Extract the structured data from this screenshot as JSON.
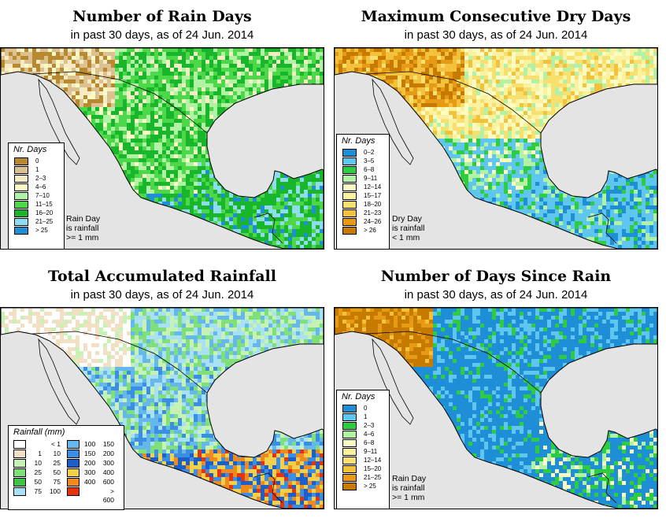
{
  "panels": [
    {
      "title": "Number of Rain Days",
      "subtitle_prefix": "in past 30 days, as of",
      "date": "24 Jun. 2014",
      "legend_title": "Nr. Days",
      "legend": [
        {
          "label": "0",
          "color": "#b8892e"
        },
        {
          "label": "1",
          "color": "#dcc191"
        },
        {
          "label": "2–3",
          "color": "#f5ecc6"
        },
        {
          "label": "4–6",
          "color": "#fbfbc4"
        },
        {
          "label": "7–10",
          "color": "#b2f2a4"
        },
        {
          "label": "11–15",
          "color": "#4dd84a"
        },
        {
          "label": "16–20",
          "color": "#18b62a"
        },
        {
          "label": "21–25",
          "color": "#8fdcef"
        },
        {
          "label": "> 25",
          "color": "#1e8fd6"
        }
      ],
      "note": [
        "Rain Day",
        "is rainfall",
        ">= 1 mm"
      ]
    },
    {
      "title": "Maximum Consecutive Dry Days",
      "subtitle_prefix": "in past 30 days, as of",
      "date": "24 Jun. 2014",
      "legend_title": "Nr. Days",
      "legend": [
        {
          "label": "0–2",
          "color": "#1e8fd6"
        },
        {
          "label": "3–5",
          "color": "#5fc6f0"
        },
        {
          "label": "6–8",
          "color": "#2ecc40"
        },
        {
          "label": "9–11",
          "color": "#b2f2a4"
        },
        {
          "label": "12–14",
          "color": "#fbfbc4"
        },
        {
          "label": "15–17",
          "color": "#fbf2a0"
        },
        {
          "label": "18–20",
          "color": "#f8e070"
        },
        {
          "label": "21–23",
          "color": "#f3c23c"
        },
        {
          "label": "24–26",
          "color": "#e79b14"
        },
        {
          "label": "> 26",
          "color": "#c67b00"
        }
      ],
      "note": [
        "Dry Day",
        "is rainfall",
        "< 1 mm"
      ]
    },
    {
      "title": "Total Accumulated Rainfall",
      "subtitle_prefix": "in past 30 days, as of",
      "date": "24 Jun. 2014",
      "legend_title": "Rainfall (mm)",
      "legend_col1": [
        {
          "lo": "",
          "hi": "< 1",
          "color": "#ffffff"
        },
        {
          "lo": "1",
          "hi": "10",
          "color": "#f2e0c4"
        },
        {
          "lo": "10",
          "hi": "25",
          "color": "#c6f2b4"
        },
        {
          "lo": "25",
          "hi": "50",
          "color": "#7fe07a"
        },
        {
          "lo": "50",
          "hi": "75",
          "color": "#3fc449"
        },
        {
          "lo": "75",
          "hi": "100",
          "color": "#a8e0f4"
        }
      ],
      "legend_col2": [
        {
          "lo": "100",
          "hi": "150",
          "color": "#66b8ec"
        },
        {
          "lo": "150",
          "hi": "200",
          "color": "#3a8fe4"
        },
        {
          "lo": "200",
          "hi": "300",
          "color": "#1a5fcc"
        },
        {
          "lo": "300",
          "hi": "400",
          "color": "#f3d04a"
        },
        {
          "lo": "400",
          "hi": "600",
          "color": "#f08a1e"
        },
        {
          "lo": "",
          "hi": "> 600",
          "color": "#e8320c"
        }
      ]
    },
    {
      "title": "Number of Days Since Rain",
      "subtitle_prefix": "in past 30 days, as of",
      "date": "24 Jun. 2014",
      "legend_title": "Nr. Days",
      "legend": [
        {
          "label": "0",
          "color": "#1e8fd6"
        },
        {
          "label": "1",
          "color": "#5fc6f0"
        },
        {
          "label": "2–3",
          "color": "#2ecc40"
        },
        {
          "label": "4–6",
          "color": "#b2f2a4"
        },
        {
          "label": "6–8",
          "color": "#fbfbc4"
        },
        {
          "label": "9–11",
          "color": "#fbf2a0"
        },
        {
          "label": "12–14",
          "color": "#f8e070"
        },
        {
          "label": "15–20",
          "color": "#f3c23c"
        },
        {
          "label": "21–25",
          "color": "#e79b14"
        },
        {
          "label": "> 25",
          "color": "#c67b00"
        }
      ],
      "note": [
        "Rain Day",
        "is rainfall",
        ">= 1 mm"
      ]
    }
  ]
}
